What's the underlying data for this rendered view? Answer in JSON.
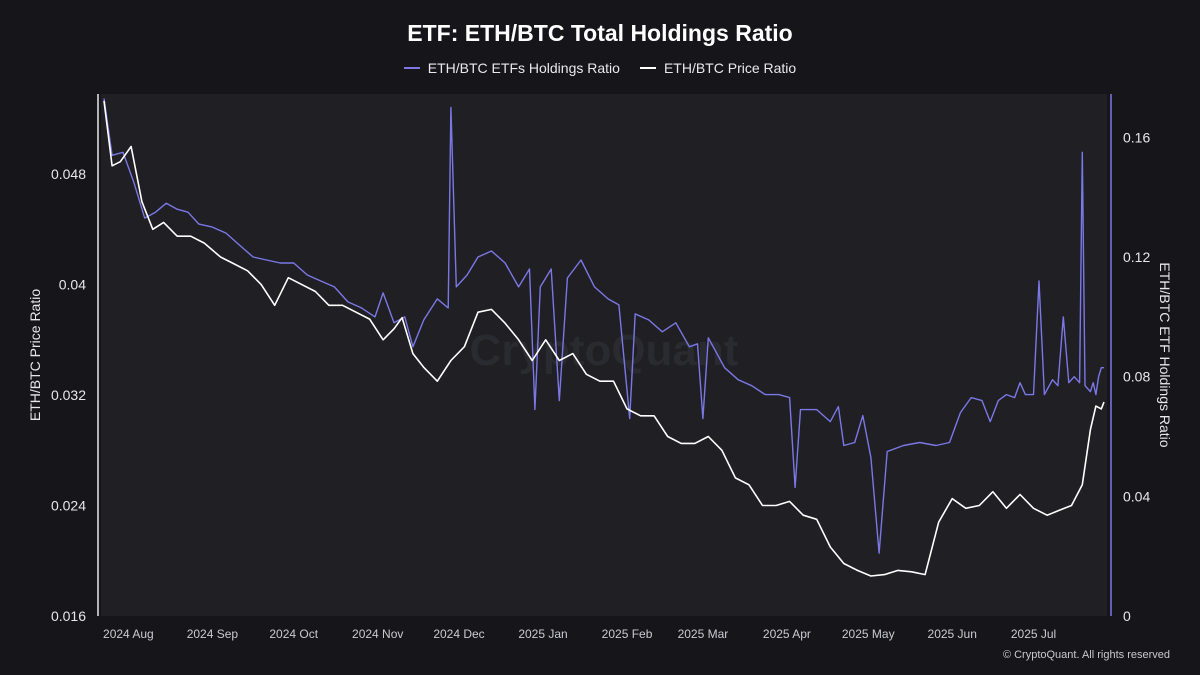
{
  "chart_data": {
    "type": "line",
    "title": "ETF: ETH/BTC Total Holdings Ratio",
    "y_left_label": "ETH/BTC Price Ratio",
    "y_right_label": "ETH/BTC ETF Holdings Ratio",
    "x_ticks": [
      "2024 Aug",
      "2024 Sep",
      "2024 Oct",
      "2024 Nov",
      "2024 Dec",
      "2025 Jan",
      "2025 Feb",
      "2025 Mar",
      "2025 Apr",
      "2025 May",
      "2025 Jun",
      "2025 Jul"
    ],
    "x_range": [
      "2024-07-23",
      "2025-07-27"
    ],
    "y_left_ticks": [
      "0.016",
      "0.024",
      "0.032",
      "0.04",
      "0.048"
    ],
    "y_left_range": [
      0.016,
      0.0538
    ],
    "y_right_ticks": [
      "0",
      "0.04",
      "0.08",
      "0.12",
      "0.16"
    ],
    "y_right_range": [
      0,
      0.1745
    ],
    "grid": false,
    "legend_placement": "top-center",
    "series": [
      {
        "name": "ETH/BTC ETFs Holdings Ratio",
        "axis": "right",
        "color": "#7b78e6",
        "points": [
          [
            "2024-07-23",
            0.173
          ],
          [
            "2024-07-26",
            0.154
          ],
          [
            "2024-07-30",
            0.155
          ],
          [
            "2024-08-03",
            0.145
          ],
          [
            "2024-08-07",
            0.133
          ],
          [
            "2024-08-11",
            0.135
          ],
          [
            "2024-08-15",
            0.138
          ],
          [
            "2024-08-19",
            0.136
          ],
          [
            "2024-08-23",
            0.135
          ],
          [
            "2024-08-27",
            0.131
          ],
          [
            "2024-09-01",
            0.13
          ],
          [
            "2024-09-06",
            0.128
          ],
          [
            "2024-09-11",
            0.124
          ],
          [
            "2024-09-16",
            0.12
          ],
          [
            "2024-09-21",
            0.119
          ],
          [
            "2024-09-26",
            0.118
          ],
          [
            "2024-10-01",
            0.118
          ],
          [
            "2024-10-06",
            0.114
          ],
          [
            "2024-10-11",
            0.112
          ],
          [
            "2024-10-16",
            0.11
          ],
          [
            "2024-10-21",
            0.105
          ],
          [
            "2024-10-26",
            0.103
          ],
          [
            "2024-10-31",
            0.1
          ],
          [
            "2024-11-03",
            0.108
          ],
          [
            "2024-11-07",
            0.098
          ],
          [
            "2024-11-11",
            0.1
          ],
          [
            "2024-11-14",
            0.09
          ],
          [
            "2024-11-18",
            0.099
          ],
          [
            "2024-11-23",
            0.106
          ],
          [
            "2024-11-27",
            0.103
          ],
          [
            "2024-11-28",
            0.17
          ],
          [
            "2024-11-30",
            0.11
          ],
          [
            "2024-12-04",
            0.114
          ],
          [
            "2024-12-08",
            0.12
          ],
          [
            "2024-12-13",
            0.122
          ],
          [
            "2024-12-18",
            0.118
          ],
          [
            "2024-12-23",
            0.11
          ],
          [
            "2024-12-27",
            0.116
          ],
          [
            "2024-12-29",
            0.069
          ],
          [
            "2024-12-31",
            0.11
          ],
          [
            "2025-01-04",
            0.116
          ],
          [
            "2025-01-07",
            0.072
          ],
          [
            "2025-01-10",
            0.113
          ],
          [
            "2025-01-15",
            0.119
          ],
          [
            "2025-01-20",
            0.11
          ],
          [
            "2025-01-25",
            0.106
          ],
          [
            "2025-01-29",
            0.104
          ],
          [
            "2025-02-02",
            0.066
          ],
          [
            "2025-02-04",
            0.101
          ],
          [
            "2025-02-09",
            0.099
          ],
          [
            "2025-02-14",
            0.095
          ],
          [
            "2025-02-19",
            0.098
          ],
          [
            "2025-02-24",
            0.09
          ],
          [
            "2025-02-27",
            0.091
          ],
          [
            "2025-03-01",
            0.066
          ],
          [
            "2025-03-03",
            0.093
          ],
          [
            "2025-03-09",
            0.083
          ],
          [
            "2025-03-14",
            0.079
          ],
          [
            "2025-03-19",
            0.077
          ],
          [
            "2025-03-24",
            0.074
          ],
          [
            "2025-03-29",
            0.074
          ],
          [
            "2025-04-02",
            0.073
          ],
          [
            "2025-04-04",
            0.043
          ],
          [
            "2025-04-06",
            0.069
          ],
          [
            "2025-04-12",
            0.069
          ],
          [
            "2025-04-17",
            0.065
          ],
          [
            "2025-04-20",
            0.07
          ],
          [
            "2025-04-22",
            0.057
          ],
          [
            "2025-04-26",
            0.058
          ],
          [
            "2025-04-29",
            0.067
          ],
          [
            "2025-05-02",
            0.053
          ],
          [
            "2025-05-05",
            0.021
          ],
          [
            "2025-05-08",
            0.055
          ],
          [
            "2025-05-14",
            0.057
          ],
          [
            "2025-05-20",
            0.058
          ],
          [
            "2025-05-26",
            0.057
          ],
          [
            "2025-05-31",
            0.058
          ],
          [
            "2025-06-04",
            0.068
          ],
          [
            "2025-06-08",
            0.073
          ],
          [
            "2025-06-12",
            0.072
          ],
          [
            "2025-06-15",
            0.065
          ],
          [
            "2025-06-18",
            0.072
          ],
          [
            "2025-06-21",
            0.074
          ],
          [
            "2025-06-24",
            0.073
          ],
          [
            "2025-06-26",
            0.078
          ],
          [
            "2025-06-28",
            0.074
          ],
          [
            "2025-07-01",
            0.074
          ],
          [
            "2025-07-03",
            0.112
          ],
          [
            "2025-07-05",
            0.074
          ],
          [
            "2025-07-08",
            0.079
          ],
          [
            "2025-07-10",
            0.077
          ],
          [
            "2025-07-12",
            0.1
          ],
          [
            "2025-07-14",
            0.078
          ],
          [
            "2025-07-16",
            0.08
          ],
          [
            "2025-07-18",
            0.078
          ],
          [
            "2025-07-19",
            0.155
          ],
          [
            "2025-07-20",
            0.077
          ],
          [
            "2025-07-22",
            0.075
          ],
          [
            "2025-07-23",
            0.078
          ],
          [
            "2025-07-24",
            0.074
          ],
          [
            "2025-07-25",
            0.08
          ],
          [
            "2025-07-26",
            0.083
          ],
          [
            "2025-07-27",
            0.083
          ]
        ]
      },
      {
        "name": "ETH/BTC Price Ratio",
        "axis": "left",
        "color": "#ffffff",
        "points": [
          [
            "2024-07-23",
            0.0533
          ],
          [
            "2024-07-26",
            0.0486
          ],
          [
            "2024-07-29",
            0.0489
          ],
          [
            "2024-08-02",
            0.05
          ],
          [
            "2024-08-06",
            0.046
          ],
          [
            "2024-08-10",
            0.044
          ],
          [
            "2024-08-14",
            0.0445
          ],
          [
            "2024-08-19",
            0.0435
          ],
          [
            "2024-08-24",
            0.0435
          ],
          [
            "2024-08-29",
            0.043
          ],
          [
            "2024-09-04",
            0.042
          ],
          [
            "2024-09-09",
            0.0415
          ],
          [
            "2024-09-14",
            0.041
          ],
          [
            "2024-09-19",
            0.04
          ],
          [
            "2024-09-24",
            0.0385
          ],
          [
            "2024-09-29",
            0.0405
          ],
          [
            "2024-10-04",
            0.04
          ],
          [
            "2024-10-09",
            0.0395
          ],
          [
            "2024-10-14",
            0.0385
          ],
          [
            "2024-10-19",
            0.0385
          ],
          [
            "2024-10-24",
            0.038
          ],
          [
            "2024-10-29",
            0.0375
          ],
          [
            "2024-11-03",
            0.036
          ],
          [
            "2024-11-07",
            0.0368
          ],
          [
            "2024-11-10",
            0.0376
          ],
          [
            "2024-11-14",
            0.035
          ],
          [
            "2024-11-18",
            0.034
          ],
          [
            "2024-11-23",
            0.033
          ],
          [
            "2024-11-28",
            0.0345
          ],
          [
            "2024-12-03",
            0.0355
          ],
          [
            "2024-12-08",
            0.038
          ],
          [
            "2024-12-13",
            0.0382
          ],
          [
            "2024-12-18",
            0.0372
          ],
          [
            "2024-12-23",
            0.036
          ],
          [
            "2024-12-28",
            0.0345
          ],
          [
            "2025-01-02",
            0.036
          ],
          [
            "2025-01-07",
            0.0345
          ],
          [
            "2025-01-12",
            0.035
          ],
          [
            "2025-01-17",
            0.0335
          ],
          [
            "2025-01-22",
            0.033
          ],
          [
            "2025-01-27",
            0.033
          ],
          [
            "2025-02-01",
            0.031
          ],
          [
            "2025-02-06",
            0.0305
          ],
          [
            "2025-02-11",
            0.0305
          ],
          [
            "2025-02-16",
            0.029
          ],
          [
            "2025-02-21",
            0.0285
          ],
          [
            "2025-02-26",
            0.0285
          ],
          [
            "2025-03-03",
            0.029
          ],
          [
            "2025-03-08",
            0.028
          ],
          [
            "2025-03-13",
            0.026
          ],
          [
            "2025-03-18",
            0.0255
          ],
          [
            "2025-03-23",
            0.024
          ],
          [
            "2025-03-28",
            0.024
          ],
          [
            "2025-04-02",
            0.0243
          ],
          [
            "2025-04-07",
            0.0233
          ],
          [
            "2025-04-12",
            0.023
          ],
          [
            "2025-04-17",
            0.021
          ],
          [
            "2025-04-22",
            0.0198
          ],
          [
            "2025-04-27",
            0.0193
          ],
          [
            "2025-05-02",
            0.0189
          ],
          [
            "2025-05-07",
            0.019
          ],
          [
            "2025-05-12",
            0.0193
          ],
          [
            "2025-05-17",
            0.0192
          ],
          [
            "2025-05-22",
            0.019
          ],
          [
            "2025-05-27",
            0.0228
          ],
          [
            "2025-06-01",
            0.0245
          ],
          [
            "2025-06-06",
            0.0238
          ],
          [
            "2025-06-11",
            0.024
          ],
          [
            "2025-06-16",
            0.025
          ],
          [
            "2025-06-21",
            0.0238
          ],
          [
            "2025-06-26",
            0.0248
          ],
          [
            "2025-07-01",
            0.0238
          ],
          [
            "2025-07-06",
            0.0233
          ],
          [
            "2025-07-11",
            0.0237
          ],
          [
            "2025-07-15",
            0.024
          ],
          [
            "2025-07-19",
            0.0255
          ],
          [
            "2025-07-22",
            0.0295
          ],
          [
            "2025-07-24",
            0.0312
          ],
          [
            "2025-07-26",
            0.031
          ],
          [
            "2025-07-27",
            0.0315
          ]
        ]
      }
    ]
  },
  "footer": "© CryptoQuant. All rights reserved",
  "watermark": "CryptoQuant"
}
